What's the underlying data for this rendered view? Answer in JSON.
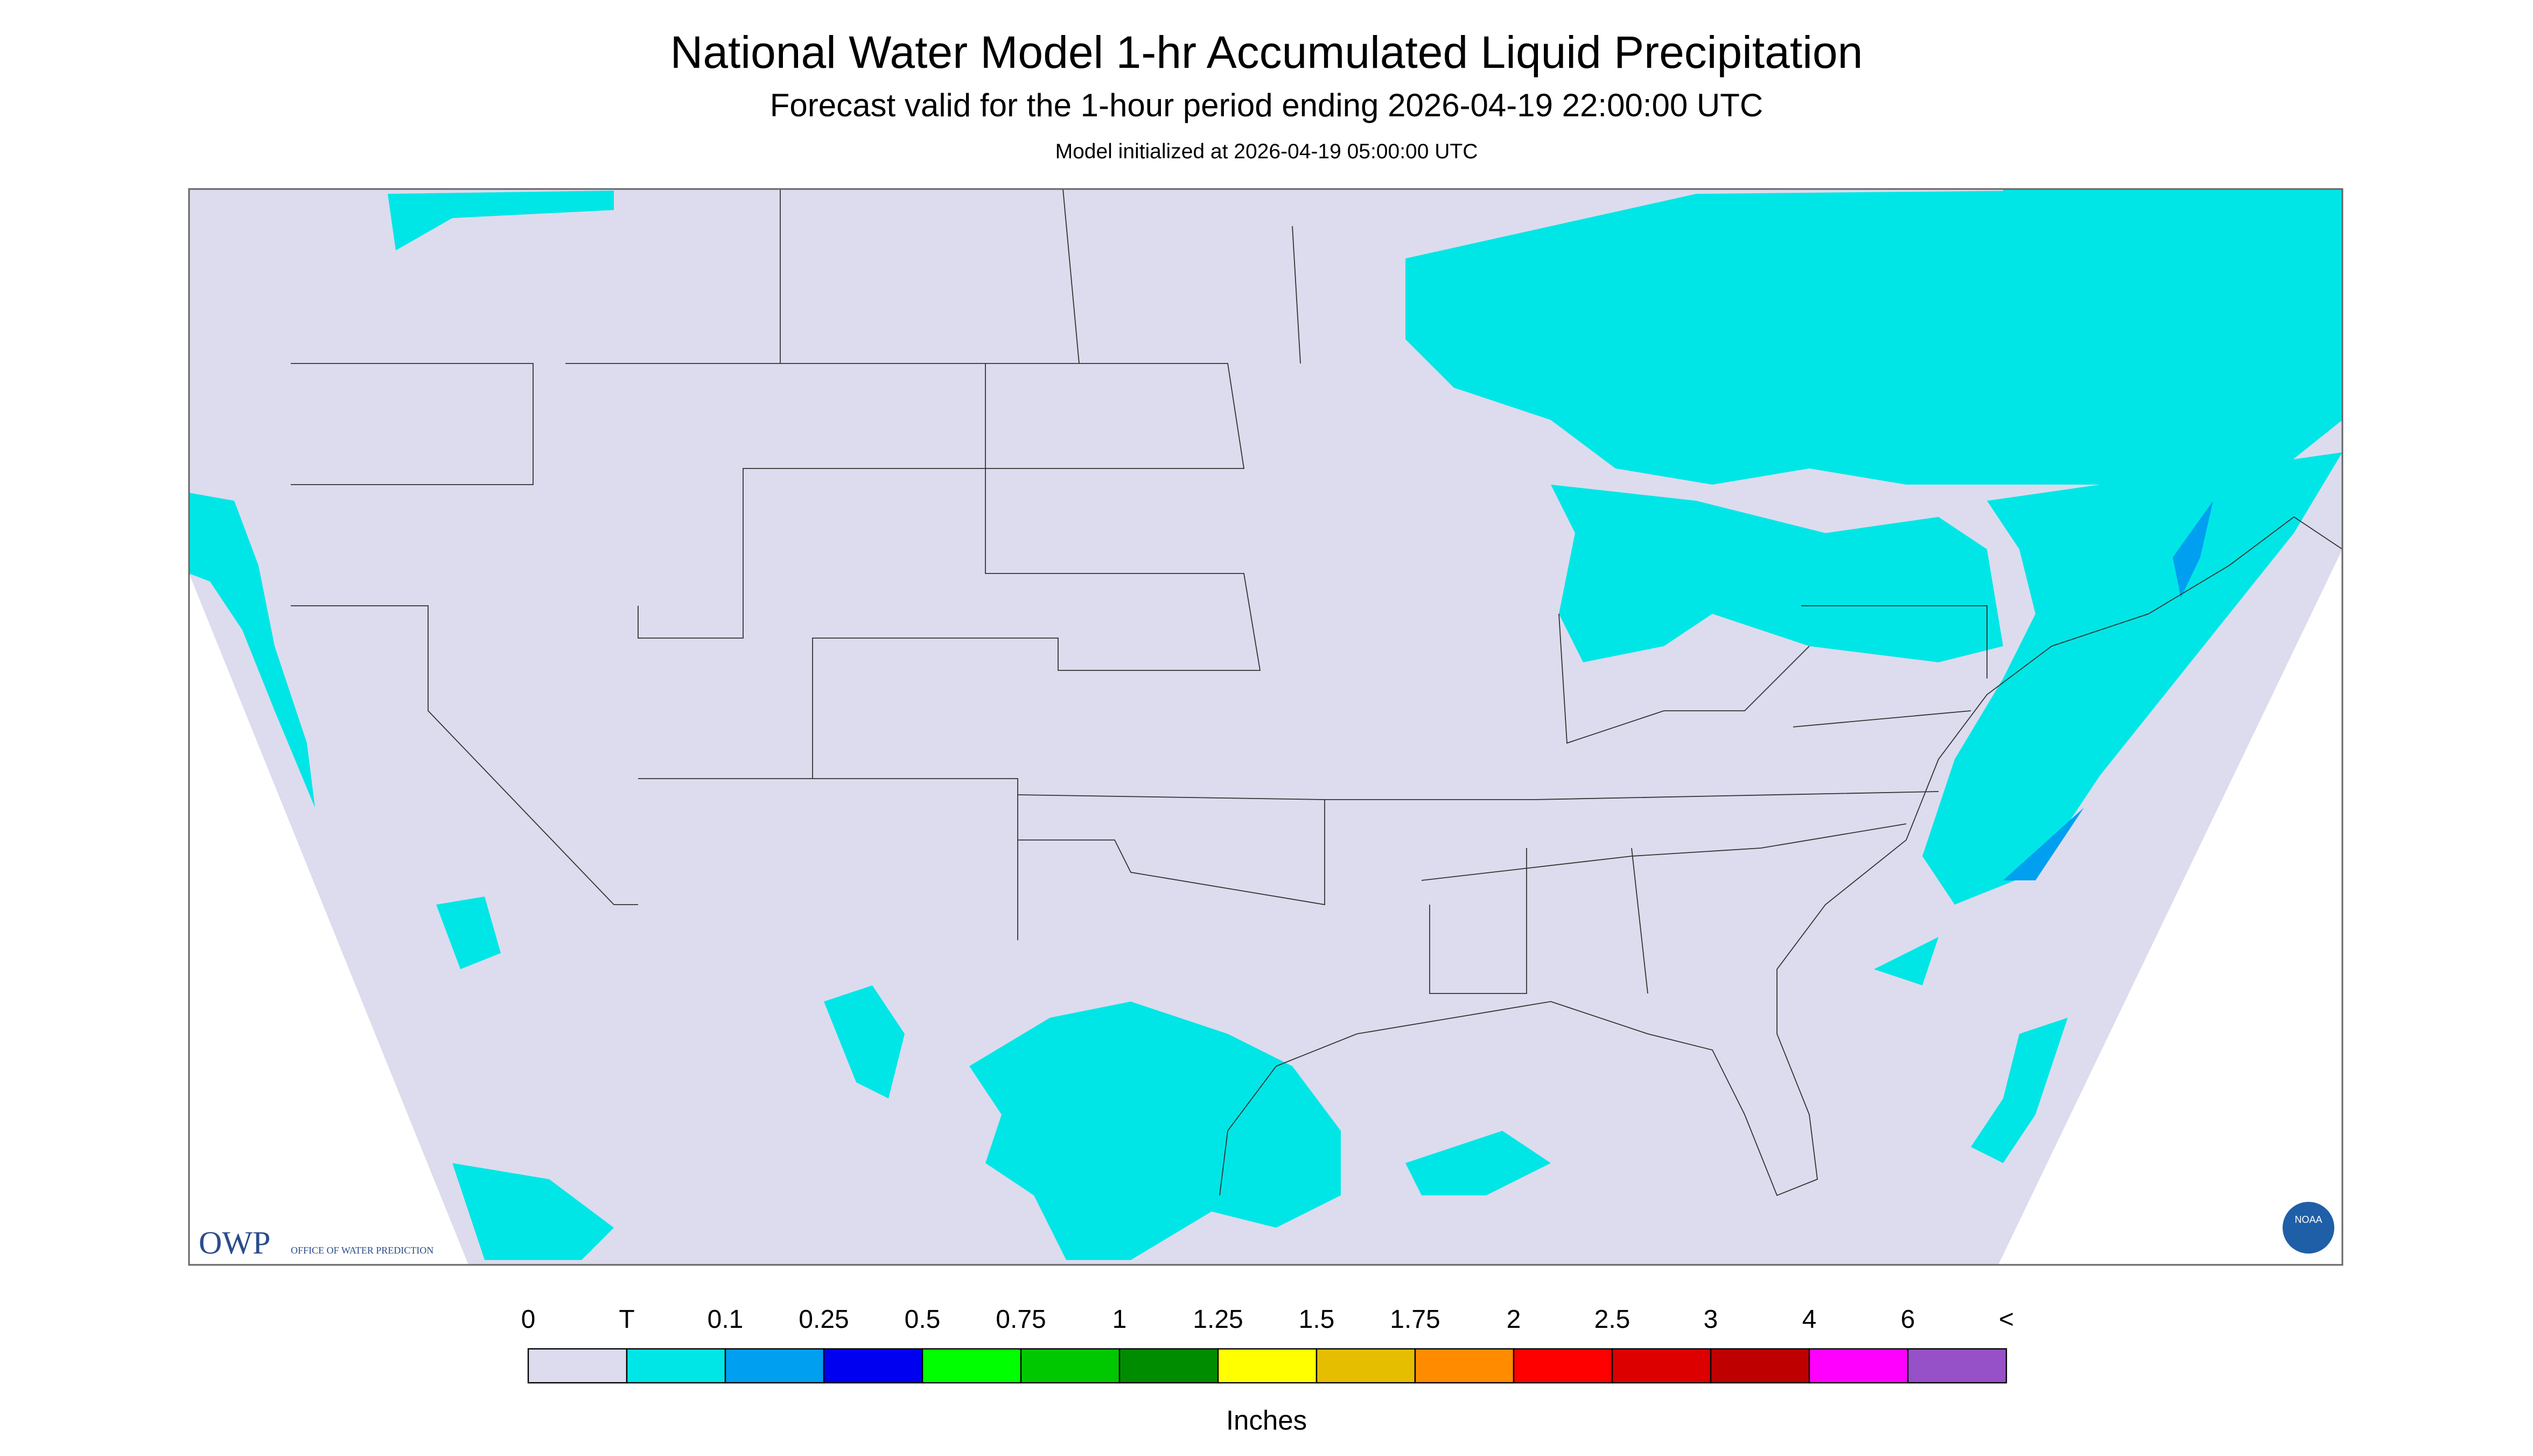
{
  "header": {
    "title": "National Water Model 1-hr Accumulated Liquid Precipitation",
    "subtitle": "Forecast valid for the 1-hour period ending 2026-04-19 22:00:00 UTC",
    "note": "Model initialized at 2026-04-19 05:00:00 UTC"
  },
  "colorbar": {
    "labels": [
      "0",
      "T",
      "0.1",
      "0.25",
      "0.5",
      "0.75",
      "1",
      "1.25",
      "1.5",
      "1.75",
      "2",
      "2.5",
      "3",
      "4",
      "6",
      "<"
    ],
    "colors": [
      "#dcdcee",
      "#00e6e6",
      "#009ff0",
      "#0000f0",
      "#00ff00",
      "#00c800",
      "#008c00",
      "#ffff00",
      "#e6be00",
      "#ff8c00",
      "#ff0000",
      "#dc0000",
      "#be0000",
      "#ff00ff",
      "#9650c8"
    ],
    "unit": "Inches"
  },
  "logos": {
    "owp": "OWP",
    "owp_name": "OFFICE OF WATER PREDICTION",
    "noaa": "NOAA"
  }
}
